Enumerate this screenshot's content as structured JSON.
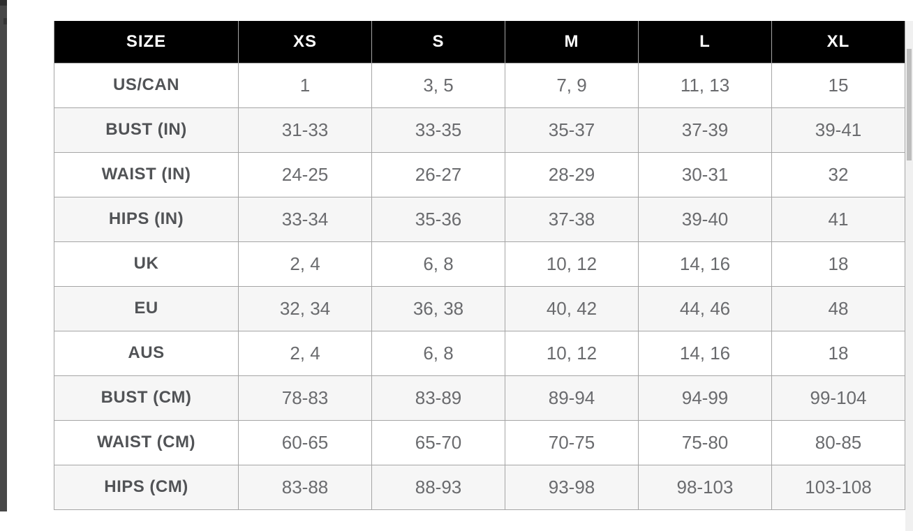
{
  "table": {
    "header": {
      "columns": [
        "SIZE",
        "XS",
        "S",
        "M",
        "L",
        "XL"
      ]
    },
    "rows": [
      {
        "label": "US/CAN",
        "values": [
          "1",
          "3, 5",
          "7, 9",
          "11, 13",
          "15"
        ]
      },
      {
        "label": "BUST (IN)",
        "values": [
          "31-33",
          "33-35",
          "35-37",
          "37-39",
          "39-41"
        ]
      },
      {
        "label": "WAIST (IN)",
        "values": [
          "24-25",
          "26-27",
          "28-29",
          "30-31",
          "32"
        ]
      },
      {
        "label": "HIPS (IN)",
        "values": [
          "33-34",
          "35-36",
          "37-38",
          "39-40",
          "41"
        ]
      },
      {
        "label": "UK",
        "values": [
          "2, 4",
          "6, 8",
          "10, 12",
          "14, 16",
          "18"
        ]
      },
      {
        "label": "EU",
        "values": [
          "32, 34",
          "36, 38",
          "40, 42",
          "44, 46",
          "48"
        ]
      },
      {
        "label": "AUS",
        "values": [
          "2, 4",
          "6, 8",
          "10, 12",
          "14, 16",
          "18"
        ]
      },
      {
        "label": "BUST (CM)",
        "values": [
          "78-83",
          "83-89",
          "89-94",
          "94-99",
          "99-104"
        ]
      },
      {
        "label": "WAIST (CM)",
        "values": [
          "60-65",
          "65-70",
          "70-75",
          "75-80",
          "80-85"
        ]
      },
      {
        "label": "HIPS (CM)",
        "values": [
          "83-88",
          "88-93",
          "93-98",
          "98-103",
          "103-108"
        ]
      }
    ]
  },
  "colors": {
    "header_bg": "#000000",
    "header_text": "#ffffff",
    "row_alt_bg": "#f6f6f6",
    "border": "#a5a5a5",
    "label_color": "#515356",
    "value_color": "#6a6b6e",
    "strip": "#484848",
    "track": "#f0f0f0",
    "thumb": "#bdbdbd"
  }
}
